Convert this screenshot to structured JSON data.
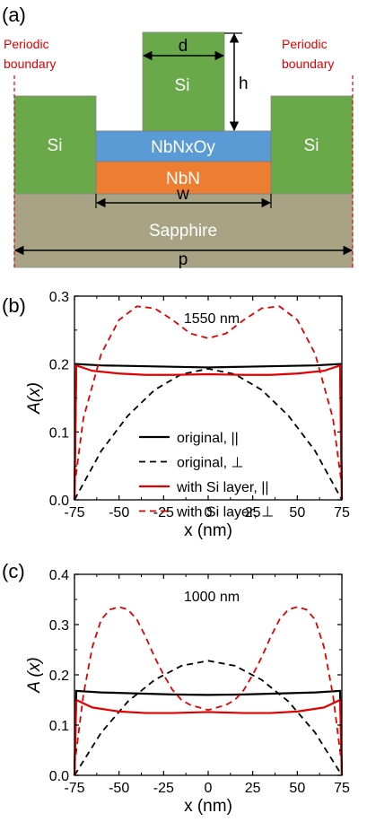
{
  "schematic": {
    "panel_label": "(a)",
    "left_boundary_line1": "Periodic",
    "left_boundary_line2": "boundary",
    "right_boundary_line1": "Periodic",
    "right_boundary_line2": "boundary",
    "si_left": "Si",
    "si_center": "Si",
    "si_right": "Si",
    "oxide_label": "NbNxOy",
    "nbn_label": "NbN",
    "substrate_label": "Sapphire",
    "dim_d": "d",
    "dim_h": "h",
    "dim_w": "w",
    "dim_p": "p",
    "colors": {
      "si": "#6aa94a",
      "oxide": "#5b9bd5",
      "nbn": "#ed7d31",
      "sapphire": "#a8a384",
      "boundary": "#e00000"
    }
  },
  "chart_data": [
    {
      "type": "line",
      "panel_label": "(b)",
      "annotation": "1550 nm",
      "xlabel": "x (nm)",
      "ylabel": "A(x)",
      "xlim": [
        -75,
        75
      ],
      "ylim": [
        0,
        0.3
      ],
      "xticks": [
        "-75",
        "-50",
        "-25",
        "0",
        "25",
        "50",
        "75"
      ],
      "yticks": [
        "0.0",
        "0.1",
        "0.2",
        "0.3"
      ],
      "legend_position": "center-right",
      "series": [
        {
          "name": "original, ||",
          "color": "#000000",
          "style": "solid",
          "x": [
            -75,
            -74,
            -60,
            -40,
            -20,
            0,
            20,
            40,
            60,
            74,
            75
          ],
          "y": [
            0.0,
            0.2,
            0.198,
            0.197,
            0.196,
            0.195,
            0.196,
            0.197,
            0.198,
            0.2,
            0.0
          ]
        },
        {
          "name": "original, ⊥",
          "color": "#000000",
          "style": "dashed",
          "x": [
            -75,
            -60,
            -45,
            -30,
            -15,
            0,
            15,
            30,
            45,
            60,
            75
          ],
          "y": [
            0.0,
            0.072,
            0.124,
            0.162,
            0.185,
            0.193,
            0.185,
            0.162,
            0.124,
            0.072,
            0.0
          ]
        },
        {
          "name": "with Si layer, ||",
          "color": "#e00000",
          "style": "solid",
          "x": [
            -75,
            -74,
            -65,
            -50,
            -35,
            -20,
            0,
            20,
            35,
            50,
            65,
            74,
            75
          ],
          "y": [
            0.0,
            0.198,
            0.19,
            0.186,
            0.184,
            0.184,
            0.185,
            0.184,
            0.184,
            0.186,
            0.19,
            0.198,
            0.0
          ]
        },
        {
          "name": "with Si layer, ⊥",
          "color": "#e00000",
          "style": "dashed",
          "x": [
            -75,
            -70,
            -60,
            -50,
            -40,
            -30,
            -20,
            -10,
            0,
            10,
            20,
            30,
            40,
            50,
            60,
            70,
            75
          ],
          "y": [
            0.02,
            0.12,
            0.215,
            0.265,
            0.285,
            0.282,
            0.265,
            0.245,
            0.238,
            0.245,
            0.265,
            0.282,
            0.285,
            0.265,
            0.215,
            0.12,
            0.02
          ]
        }
      ]
    },
    {
      "type": "line",
      "panel_label": "(c)",
      "annotation": "1000 nm",
      "xlabel": "x (nm)",
      "ylabel": "A (x)",
      "xlim": [
        -75,
        75
      ],
      "ylim": [
        0,
        0.4
      ],
      "xticks": [
        "-75",
        "-50",
        "-25",
        "0",
        "25",
        "50",
        "75"
      ],
      "yticks": [
        "0.0",
        "0.1",
        "0.2",
        "0.3",
        "0.4"
      ],
      "series": [
        {
          "color": "#000000",
          "style": "solid",
          "x": [
            -75,
            -74,
            -60,
            -40,
            -20,
            0,
            20,
            40,
            60,
            74,
            75
          ],
          "y": [
            0.0,
            0.168,
            0.165,
            0.163,
            0.161,
            0.16,
            0.161,
            0.163,
            0.165,
            0.168,
            0.0
          ]
        },
        {
          "color": "#000000",
          "style": "dashed",
          "x": [
            -75,
            -60,
            -45,
            -30,
            -15,
            0,
            15,
            30,
            45,
            60,
            75
          ],
          "y": [
            0.0,
            0.085,
            0.147,
            0.19,
            0.218,
            0.228,
            0.218,
            0.19,
            0.147,
            0.085,
            0.0
          ]
        },
        {
          "color": "#e00000",
          "style": "solid",
          "x": [
            -75,
            -74,
            -65,
            -50,
            -35,
            -20,
            0,
            20,
            35,
            50,
            65,
            74,
            75
          ],
          "y": [
            0.0,
            0.15,
            0.135,
            0.127,
            0.124,
            0.124,
            0.126,
            0.124,
            0.124,
            0.127,
            0.135,
            0.15,
            0.0
          ]
        },
        {
          "color": "#e00000",
          "style": "dashed",
          "x": [
            -75,
            -70,
            -65,
            -60,
            -55,
            -50,
            -45,
            -40,
            -35,
            -30,
            -25,
            -20,
            -15,
            -10,
            -5,
            0,
            5,
            10,
            15,
            20,
            25,
            30,
            35,
            40,
            45,
            50,
            55,
            60,
            65,
            70,
            75
          ],
          "y": [
            0.02,
            0.16,
            0.255,
            0.31,
            0.33,
            0.335,
            0.33,
            0.31,
            0.275,
            0.235,
            0.2,
            0.17,
            0.15,
            0.14,
            0.135,
            0.13,
            0.135,
            0.14,
            0.15,
            0.17,
            0.2,
            0.235,
            0.275,
            0.31,
            0.33,
            0.335,
            0.33,
            0.31,
            0.255,
            0.16,
            0.02
          ]
        }
      ]
    }
  ]
}
